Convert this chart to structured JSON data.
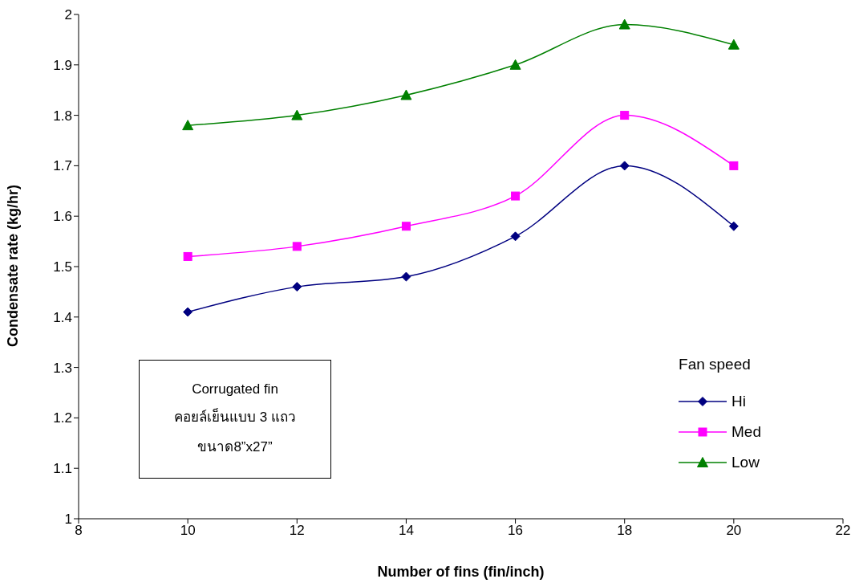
{
  "chart_data": {
    "type": "line",
    "xlabel": "Number of fins (fin/inch)",
    "ylabel": "Condensate rate (kg/hr)",
    "legend_title": "Fan speed",
    "x": [
      10,
      12,
      14,
      16,
      18,
      20
    ],
    "series": [
      {
        "name": "Hi",
        "color": "#000080",
        "marker": "diamond",
        "values": [
          1.41,
          1.46,
          1.48,
          1.56,
          1.7,
          1.58
        ]
      },
      {
        "name": "Med",
        "color": "#ff00ff",
        "marker": "square",
        "values": [
          1.52,
          1.54,
          1.58,
          1.64,
          1.8,
          1.7
        ]
      },
      {
        "name": "Low",
        "color": "#008000",
        "marker": "triangle",
        "values": [
          1.78,
          1.8,
          1.84,
          1.9,
          1.98,
          1.94
        ]
      }
    ],
    "xlim": [
      8,
      22
    ],
    "xticks": [
      8,
      10,
      12,
      14,
      16,
      18,
      20,
      22
    ],
    "ylim": [
      1,
      2
    ],
    "yticks": [
      1,
      1.1,
      1.2,
      1.3,
      1.4,
      1.5,
      1.6,
      1.7,
      1.8,
      1.9,
      2
    ],
    "grid": false,
    "legend": "bottom right",
    "line_style": "solid",
    "annotations": [
      "Corrugated fin",
      "คอยล์เย็นแบบ 3 แถว",
      "ขนาด8”x27”"
    ]
  }
}
